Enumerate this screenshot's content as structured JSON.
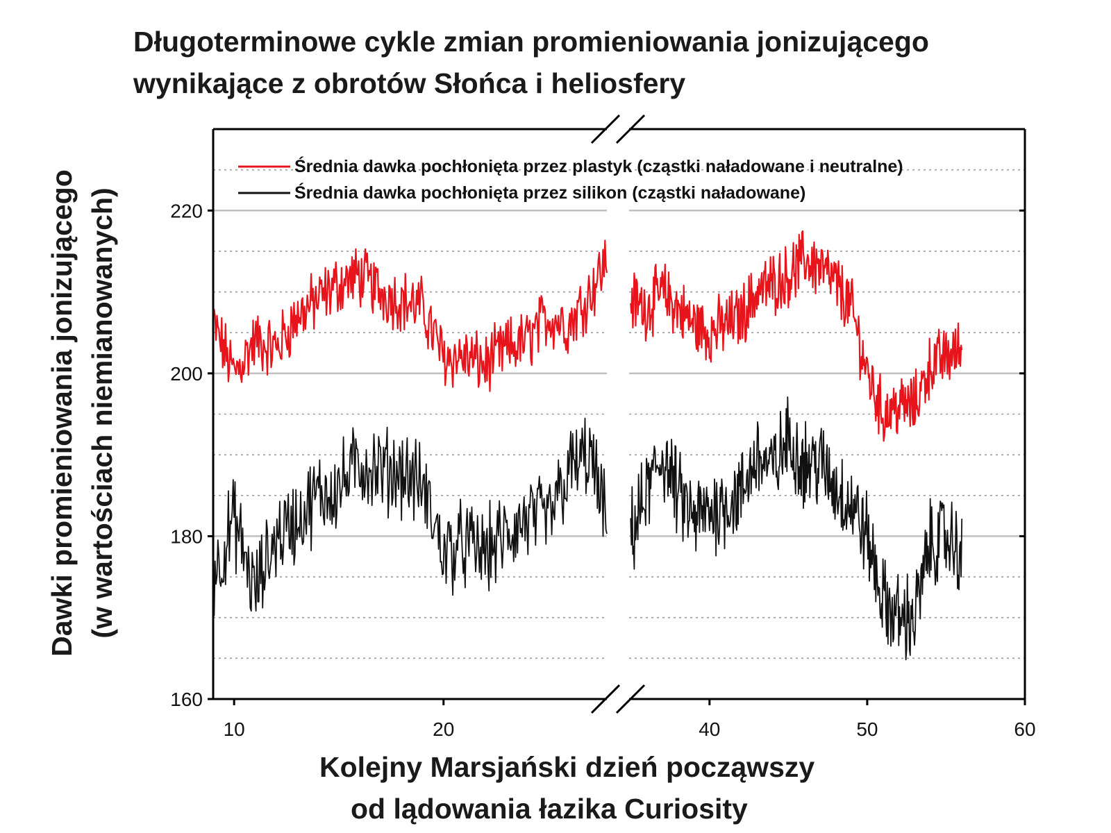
{
  "chart_data": {
    "type": "line",
    "title": [
      "Długoterminowe cykle zmian promieniowania jonizującego",
      "wynikające z obrotów Słońca i heliosfery"
    ],
    "ylabel": [
      "Dawki promieniowania jonizującego",
      "(w wartościach niemianowanych)"
    ],
    "xlabel": [
      "Kolejny Marsjański dzień począwszy",
      "od lądowania łazika Curiosity"
    ],
    "ylim": [
      160,
      230
    ],
    "yticks": [
      160,
      180,
      200,
      220
    ],
    "ytick_labels": [
      "160",
      "180",
      "200",
      "220"
    ],
    "axis_break": {
      "left_segment_xlim": [
        9,
        27.8
      ],
      "right_segment_xlim": [
        34.9,
        60
      ]
    },
    "xticks": [
      10,
      20,
      40,
      50,
      60
    ],
    "xtick_labels": [
      "10",
      "20",
      "40",
      "50",
      "60"
    ],
    "grid": true,
    "legend_position": "top-left",
    "series": [
      {
        "name": "Średnia dawka pochłonięta przez plastyk (cząstki naładowane i neutralne)",
        "color": "#e8141b",
        "segments": [
          {
            "x": [
              9,
              10,
              11,
              12,
              13,
              14,
              15,
              16,
              17,
              18,
              19,
              20,
              21,
              22,
              23,
              24,
              25,
              26,
              27,
              27.8
            ],
            "y": [
              206,
              200,
              204,
              203,
              207,
              209,
              211,
              212,
              210,
              209,
              208,
              202,
              202,
              201,
              203,
              204,
              207,
              206,
              210,
              214
            ]
          },
          {
            "x": [
              35,
              36,
              37,
              38,
              39,
              40,
              41,
              42,
              43,
              44,
              45,
              46,
              47,
              48,
              49,
              50,
              51,
              52,
              53,
              54,
              55,
              56
            ],
            "y": [
              209,
              208,
              210,
              208,
              206,
              205,
              206,
              207,
              210,
              211,
              212,
              214,
              213,
              211,
              208,
              200,
              195,
              196,
              196,
              201,
              202,
              203
            ]
          }
        ],
        "noise": 3.2
      },
      {
        "name": "Średnia dawka pochłonięta przez silikon (cząstki naładowane)",
        "color": "#111111",
        "segments": [
          {
            "x": [
              9,
              10,
              11,
              12,
              13,
              14,
              15,
              16,
              17,
              18,
              19,
              20,
              21,
              22,
              23,
              24,
              25,
              26,
              27,
              27.8
            ],
            "y": [
              175,
              182,
              173,
              180,
              182,
              185,
              186,
              189,
              188,
              188,
              186,
              178,
              179,
              178,
              180,
              182,
              182,
              188,
              190,
              181
            ]
          },
          {
            "x": [
              35,
              36,
              37,
              38,
              39,
              40,
              41,
              42,
              43,
              44,
              45,
              46,
              47,
              48,
              49,
              50,
              51,
              52,
              53,
              54,
              55,
              56
            ],
            "y": [
              180,
              185,
              190,
              185,
              182,
              183,
              184,
              185,
              190,
              188,
              192,
              189,
              189,
              186,
              184,
              180,
              172,
              170,
              170,
              179,
              180,
              178
            ]
          }
        ],
        "noise": 4.5
      }
    ]
  },
  "colors": {
    "axis": "#000000",
    "grid_major": "#c0c0c0",
    "grid_minor": "#9a9a9a"
  }
}
